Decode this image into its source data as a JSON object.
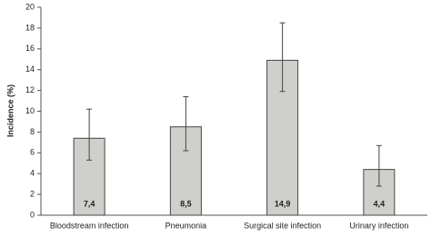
{
  "chart_data": {
    "type": "bar",
    "y_label": "Incidence (%)",
    "categories": [
      "Bloodstream infection",
      "Pneumonia",
      "Surgical site infection",
      "Urinary infection"
    ],
    "values": [
      7.4,
      8.5,
      14.9,
      4.4
    ],
    "value_labels": [
      "7,4",
      "8,5",
      "14,9",
      "4,4"
    ],
    "errors_upper": [
      2.8,
      2.9,
      3.6,
      2.3
    ],
    "errors_lower": [
      2.1,
      2.3,
      3.0,
      1.6
    ],
    "color": "#cfd0cc",
    "ylim": [
      0,
      20
    ],
    "yticks": [
      0,
      2,
      4,
      6,
      8,
      10,
      12,
      14,
      16,
      18,
      20
    ],
    "grid": false
  }
}
